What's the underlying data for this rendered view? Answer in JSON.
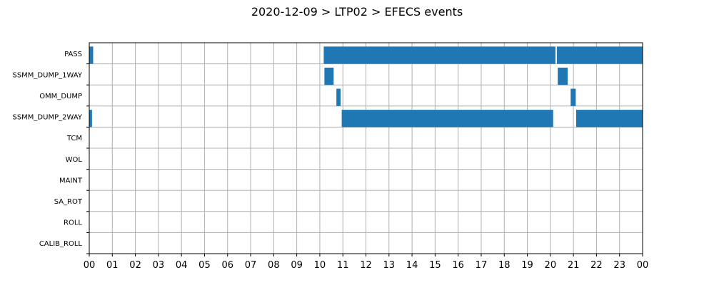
{
  "chart_data": {
    "type": "gantt",
    "title": "2020-12-09 > LTP02 > EFECS events",
    "x_unit": "hour",
    "xlim": [
      0,
      24
    ],
    "x_ticks": [
      0,
      1,
      2,
      3,
      4,
      5,
      6,
      7,
      8,
      9,
      10,
      11,
      12,
      13,
      14,
      15,
      16,
      17,
      18,
      19,
      20,
      21,
      22,
      23,
      24
    ],
    "x_tick_labels": [
      "00",
      "01",
      "02",
      "03",
      "04",
      "05",
      "06",
      "07",
      "08",
      "09",
      "10",
      "11",
      "12",
      "13",
      "14",
      "15",
      "16",
      "17",
      "18",
      "19",
      "20",
      "21",
      "22",
      "23",
      "00"
    ],
    "grid": true,
    "bar_color": "#1f77b4",
    "categories": [
      "PASS",
      "SSMM_DUMP_1WAY",
      "OMM_DUMP",
      "SSMM_DUMP_2WAY",
      "TCM",
      "WOL",
      "MAINT",
      "SA_ROT",
      "ROLL",
      "CALIB_ROLL"
    ],
    "events": [
      {
        "category": "PASS",
        "start": 0.0,
        "end": 0.17
      },
      {
        "category": "PASS",
        "start": 10.17,
        "end": 20.22
      },
      {
        "category": "PASS",
        "start": 20.28,
        "end": 24.0
      },
      {
        "category": "SSMM_DUMP_1WAY",
        "start": 10.2,
        "end": 10.6
      },
      {
        "category": "SSMM_DUMP_1WAY",
        "start": 20.32,
        "end": 20.75
      },
      {
        "category": "OMM_DUMP",
        "start": 10.72,
        "end": 10.9
      },
      {
        "category": "OMM_DUMP",
        "start": 20.88,
        "end": 21.1
      },
      {
        "category": "SSMM_DUMP_2WAY",
        "start": 0.0,
        "end": 0.12
      },
      {
        "category": "SSMM_DUMP_2WAY",
        "start": 10.95,
        "end": 20.12
      },
      {
        "category": "SSMM_DUMP_2WAY",
        "start": 21.12,
        "end": 24.0
      }
    ]
  }
}
